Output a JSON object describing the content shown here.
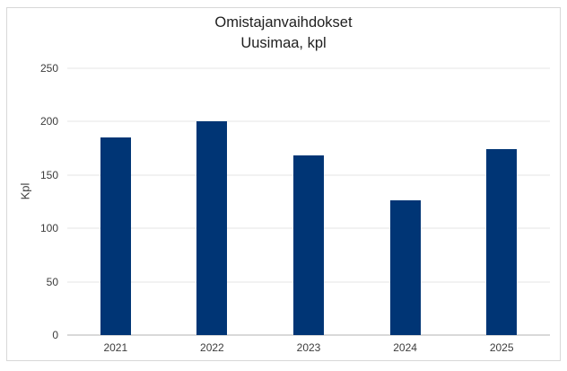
{
  "chart": {
    "title_line1": "Omistajanvaihdokset",
    "title_line2": "Uusimaa, kpl"
  },
  "chart_data": {
    "type": "bar",
    "title": "Omistajanvaihdokset Uusimaa, kpl",
    "categories": [
      "2021",
      "2022",
      "2023",
      "2024",
      "2025"
    ],
    "values": [
      185,
      200,
      168,
      126,
      174
    ],
    "xlabel": "",
    "ylabel": "Kpl",
    "ylim": [
      0,
      250
    ],
    "yticks": [
      0,
      50,
      100,
      150,
      200,
      250
    ],
    "grid": true,
    "legend": "none",
    "bar_color": "#003575",
    "gridline_color": "#e6e6e6",
    "axis_line_color": "#b3b3b3",
    "frame_border_color": "#d8d8d8",
    "title_color": "#1f1f1f",
    "tick_label_color": "#3c3c3c"
  }
}
